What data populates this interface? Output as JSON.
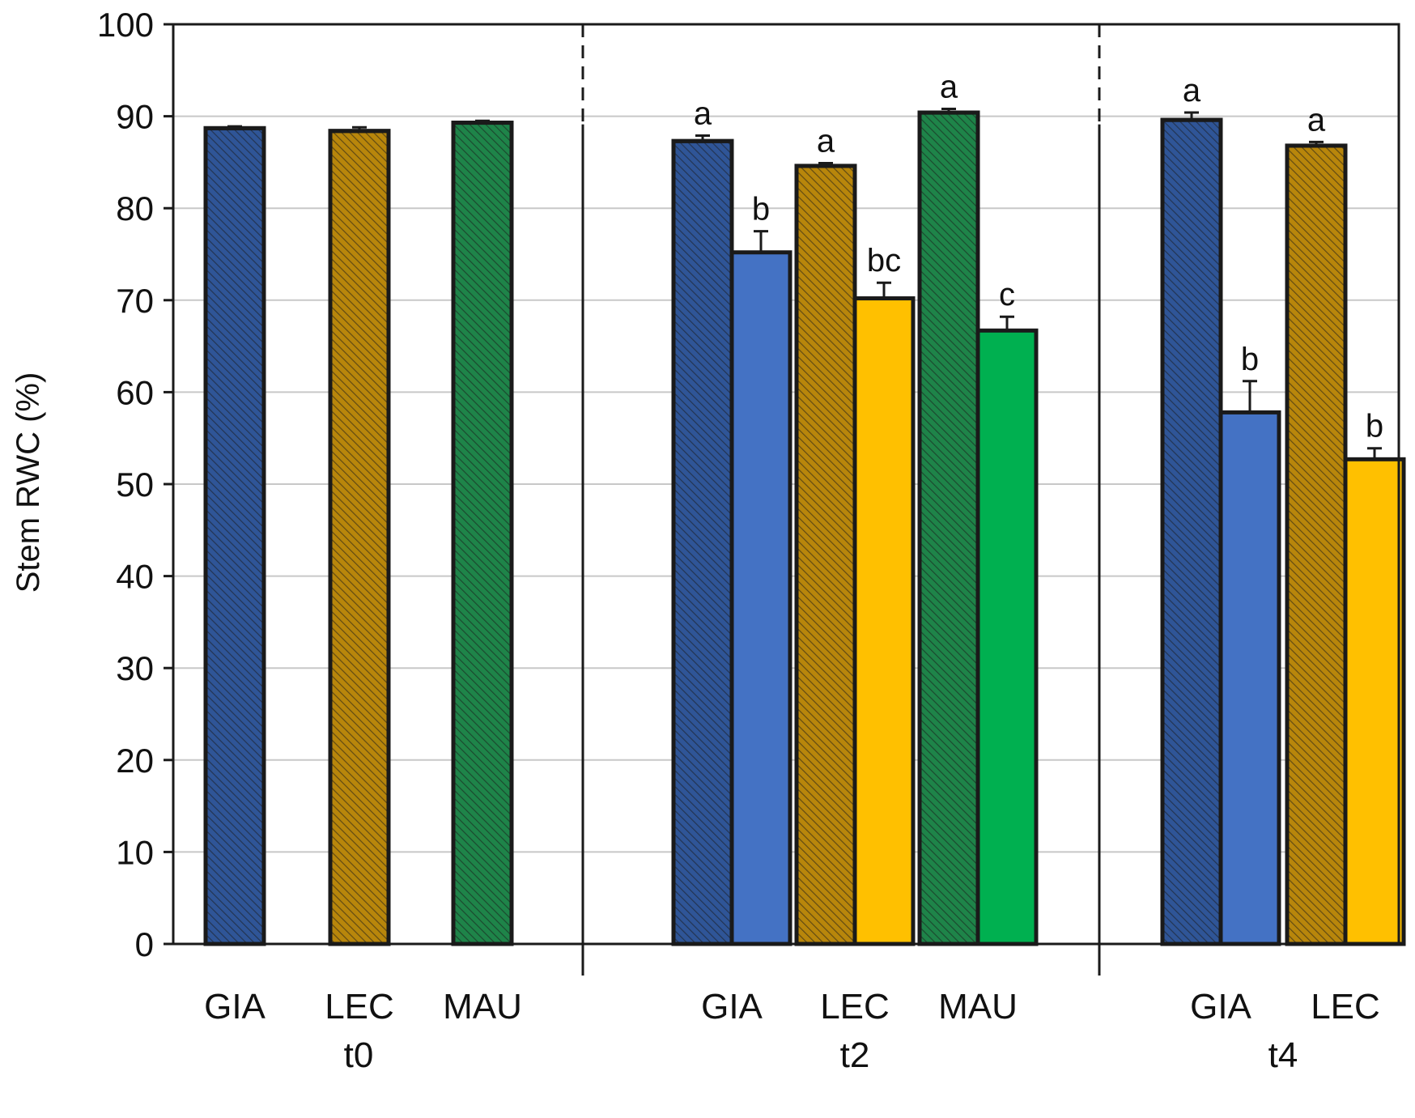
{
  "chart_data": {
    "type": "bar",
    "title": "",
    "xlabel": "",
    "ylabel": "Stem RWC (%)",
    "ylim": [
      0,
      100
    ],
    "yticks": [
      0,
      10,
      20,
      30,
      40,
      50,
      60,
      70,
      80,
      90,
      100
    ],
    "grid": true,
    "colors": {
      "GIA_control": "#2f5597",
      "GIA_stress": "#4472c4",
      "LEC_control": "#b8860b",
      "LEC_stress": "#ffc000",
      "MAU_control": "#1e8449",
      "MAU_stress": "#00b050",
      "hatch": "#1a1a1a",
      "outline": "#1a1a1a",
      "gridline": "#c8c8c8"
    },
    "groups": [
      {
        "label": "t0",
        "cultivars": [
          {
            "label": "GIA",
            "bars": [
              {
                "key": "GIA_control",
                "hatched": true,
                "value": 88.7,
                "error": 0.2,
                "sig": ""
              }
            ]
          },
          {
            "label": "LEC",
            "bars": [
              {
                "key": "LEC_control",
                "hatched": true,
                "value": 88.4,
                "error": 0.4,
                "sig": ""
              }
            ]
          },
          {
            "label": "MAU",
            "bars": [
              {
                "key": "MAU_control",
                "hatched": true,
                "value": 89.3,
                "error": 0.2,
                "sig": ""
              }
            ]
          }
        ]
      },
      {
        "label": "t2",
        "cultivars": [
          {
            "label": "GIA",
            "bars": [
              {
                "key": "GIA_control",
                "hatched": true,
                "value": 87.3,
                "error": 0.6,
                "sig": "a"
              },
              {
                "key": "GIA_stress",
                "hatched": false,
                "value": 75.2,
                "error": 2.3,
                "sig": "b"
              }
            ]
          },
          {
            "label": "LEC",
            "bars": [
              {
                "key": "LEC_control",
                "hatched": true,
                "value": 84.6,
                "error": 0.3,
                "sig": "a"
              },
              {
                "key": "LEC_stress",
                "hatched": false,
                "value": 70.2,
                "error": 1.7,
                "sig": "bc"
              }
            ]
          },
          {
            "label": "MAU",
            "bars": [
              {
                "key": "MAU_control",
                "hatched": true,
                "value": 90.4,
                "error": 0.4,
                "sig": "a"
              },
              {
                "key": "MAU_stress",
                "hatched": false,
                "value": 66.7,
                "error": 1.5,
                "sig": "c"
              }
            ]
          }
        ]
      },
      {
        "label": "t4",
        "cultivars": [
          {
            "label": "GIA",
            "bars": [
              {
                "key": "GIA_control",
                "hatched": true,
                "value": 89.6,
                "error": 0.8,
                "sig": "a"
              },
              {
                "key": "GIA_stress",
                "hatched": false,
                "value": 57.8,
                "error": 3.4,
                "sig": "b"
              }
            ]
          },
          {
            "label": "LEC",
            "bars": [
              {
                "key": "LEC_control",
                "hatched": true,
                "value": 86.8,
                "error": 0.4,
                "sig": "a"
              },
              {
                "key": "LEC_stress",
                "hatched": false,
                "value": 52.7,
                "error": 1.2,
                "sig": "b"
              }
            ]
          }
        ]
      }
    ]
  }
}
